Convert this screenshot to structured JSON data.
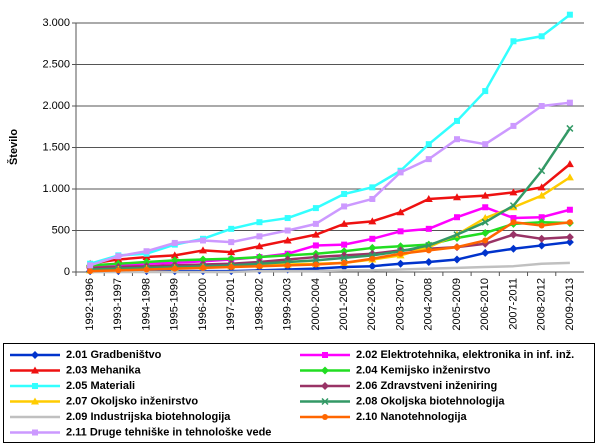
{
  "chart_data": {
    "type": "line",
    "ylabel": "Število",
    "categories": [
      "1992-1996",
      "1993-1997",
      "1994-1998",
      "1995-1999",
      "1996-2000",
      "1997-2001",
      "1998-2002",
      "1999-2003",
      "2000-2004",
      "2001-2005",
      "2002-2006",
      "2003-2007",
      "2004-2008",
      "2005-2009",
      "2006-2010",
      "2007-2011",
      "2008-2012",
      "2009-2013"
    ],
    "ylim": [
      0,
      3000
    ],
    "yticks": [
      0,
      500,
      {
        "value": 1000,
        "label": "1.000"
      },
      {
        "value": 1500,
        "label": "1.500"
      },
      {
        "value": 2000,
        "label": "2.000"
      },
      {
        "value": 2500,
        "label": "2.500"
      },
      {
        "value": 3000,
        "label": "3.000"
      }
    ],
    "grid": true,
    "legend": "bottom",
    "series": [
      {
        "name": "2.01 Gradbeništvo",
        "color": "#0033cc",
        "marker": "diamond",
        "values": [
          10,
          10,
          10,
          10,
          10,
          10,
          20,
          30,
          40,
          60,
          70,
          100,
          120,
          150,
          230,
          280,
          320,
          360
        ]
      },
      {
        "name": "2.02 Elektrotehnika, elektronika in inf. inž.",
        "color": "#ff00ff",
        "marker": "square",
        "values": [
          50,
          80,
          100,
          110,
          130,
          150,
          180,
          220,
          320,
          330,
          400,
          490,
          520,
          660,
          780,
          650,
          660,
          750
        ]
      },
      {
        "name": "2.03 Mehanika",
        "color": "#ee1111",
        "marker": "triangle",
        "values": [
          100,
          150,
          180,
          200,
          260,
          240,
          310,
          380,
          450,
          580,
          610,
          720,
          880,
          900,
          920,
          960,
          1020,
          1300
        ]
      },
      {
        "name": "2.04 Kemijsko inženirstvo",
        "color": "#22dd22",
        "marker": "diamond",
        "values": [
          80,
          100,
          120,
          140,
          150,
          160,
          180,
          200,
          220,
          250,
          290,
          310,
          330,
          410,
          470,
          580,
          600,
          590
        ]
      },
      {
        "name": "2.05 Materiali",
        "color": "#33ffff",
        "marker": "square",
        "values": [
          100,
          200,
          220,
          330,
          400,
          520,
          600,
          650,
          770,
          940,
          1020,
          1220,
          1540,
          1820,
          2180,
          2780,
          2840,
          3100
        ]
      },
      {
        "name": "2.06 Zdravstveni inženiring",
        "color": "#993366",
        "marker": "diamond",
        "values": [
          50,
          60,
          70,
          80,
          90,
          100,
          120,
          150,
          180,
          200,
          220,
          260,
          280,
          300,
          340,
          450,
          400,
          420
        ]
      },
      {
        "name": "2.07 Okoljsko inženirstvo",
        "color": "#ffcc00",
        "marker": "triangle",
        "values": [
          20,
          30,
          40,
          50,
          60,
          70,
          80,
          90,
          100,
          110,
          150,
          200,
          300,
          450,
          650,
          780,
          920,
          1140
        ]
      },
      {
        "name": "2.08 Okoljska biotehnologija",
        "color": "#339966",
        "marker": "x",
        "values": [
          30,
          40,
          50,
          60,
          70,
          80,
          100,
          120,
          140,
          170,
          200,
          250,
          320,
          450,
          600,
          800,
          1220,
          1730
        ]
      },
      {
        "name": "2.09 Industrijska biotehnologija",
        "color": "#c0c0c0",
        "marker": "none",
        "values": [
          0,
          0,
          0,
          0,
          0,
          0,
          10,
          10,
          10,
          20,
          20,
          30,
          40,
          50,
          60,
          70,
          100,
          110
        ]
      },
      {
        "name": "2.10 Nanotehnologija",
        "color": "#ff6600",
        "marker": "circle",
        "values": [
          10,
          20,
          30,
          40,
          50,
          60,
          70,
          80,
          90,
          110,
          160,
          220,
          260,
          300,
          380,
          600,
          560,
          600
        ]
      },
      {
        "name": "2.11 Druge tehniške in tehnološke vede",
        "color": "#cc99ff",
        "marker": "square",
        "values": [
          80,
          190,
          250,
          350,
          380,
          360,
          430,
          500,
          580,
          790,
          880,
          1200,
          1360,
          1600,
          1540,
          1760,
          2000,
          2040
        ]
      }
    ]
  }
}
